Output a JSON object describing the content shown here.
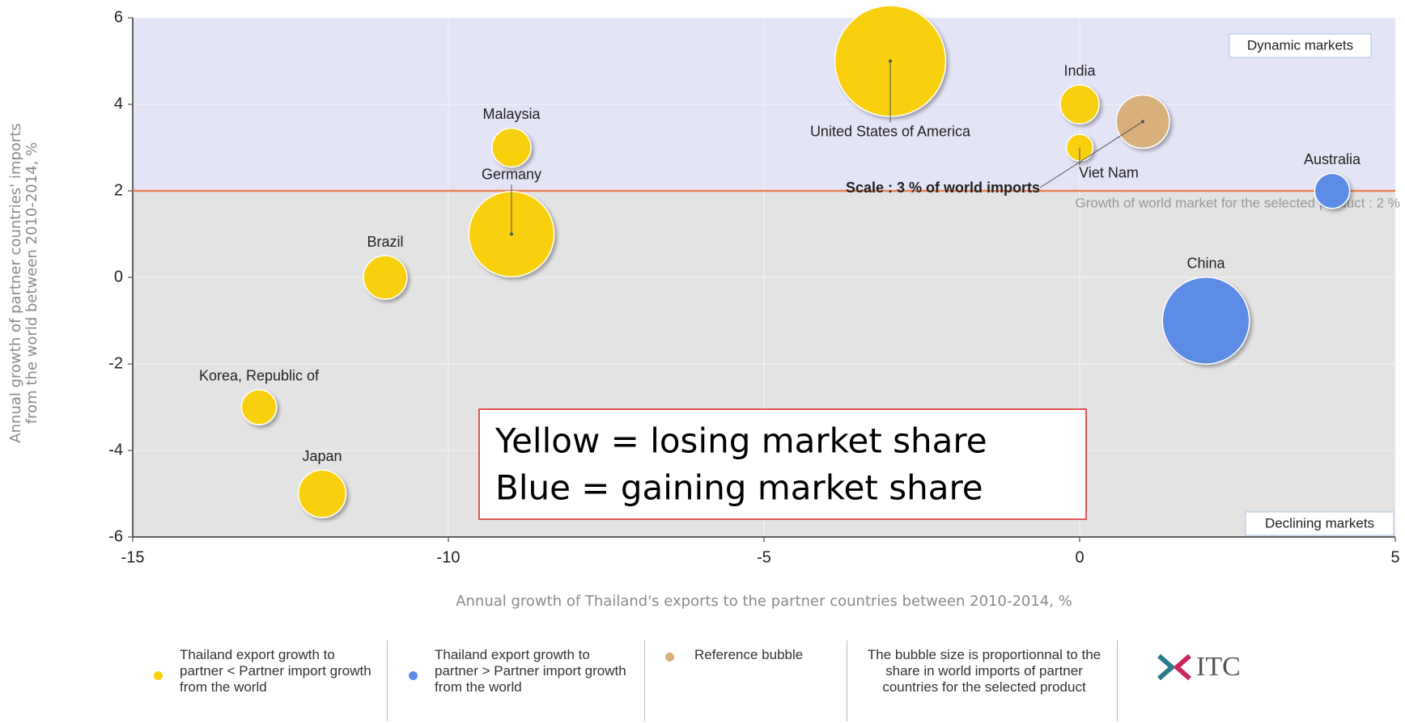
{
  "chart_data": {
    "type": "bubble",
    "x_title": "Annual growth of Thailand's exports to the partner countries between 2010-2014, %",
    "y_title": "Annual growth of partner countries' imports from the world between 2010-2014, %",
    "xlim": [
      -15,
      5
    ],
    "xticks": [
      -15,
      -10,
      -5,
      0,
      5
    ],
    "ylim": [
      -6,
      6
    ],
    "yticks": [
      -6,
      -4,
      -2,
      0,
      2,
      4,
      6
    ],
    "grid": true,
    "series": [
      {
        "name": "Thailand export growth to partner < Partner import growth from the world",
        "color": "#f8d00c",
        "labels": [
          "Malaysia",
          "Germany",
          "Brazil",
          "Korea, Republic of",
          "Japan",
          "United States of America",
          "India",
          "Viet Nam"
        ],
        "x": [
          -9,
          -9,
          -11,
          -13,
          -12,
          -3,
          0,
          0
        ],
        "values": [
          3,
          1,
          0,
          -3,
          -5,
          5,
          4,
          3
        ],
        "sizes": [
          1.6,
          7.7,
          2,
          1.3,
          2.4,
          13,
          1.6,
          0.75
        ]
      },
      {
        "name": "Thailand export growth to partner > Partner import growth from the world",
        "color": "#5b8ce6",
        "labels": [
          "Australia",
          "China"
        ],
        "x": [
          4,
          2
        ],
        "values": [
          2,
          -1
        ],
        "sizes": [
          1.3,
          8
        ]
      },
      {
        "name": "Reference bubble",
        "color": "#d8b07c",
        "x": [
          1
        ],
        "values": [
          3.6
        ],
        "sizes": [
          3
        ]
      }
    ],
    "scale_label": "Scale : 3 % of world imports",
    "reference_line": {
      "value": 2,
      "label": "Growth of world market for the selected product : 2 %",
      "color": "#f08050"
    },
    "quadrant_labels": {
      "top": "Dynamic markets",
      "bottom": "Declining markets"
    },
    "top_region_color": "#e4e4f7",
    "bottom_region_color": "#e3e3e3",
    "size_note": "The bubble size is proportionnal to the share in world imports of partner countries for the selected product",
    "annotation": [
      "Yellow = losing market share",
      "Blue = gaining market share"
    ],
    "logo": "ITC"
  }
}
